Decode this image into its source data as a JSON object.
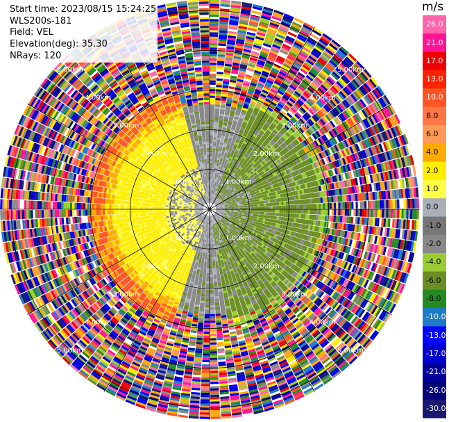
{
  "header": {
    "start_time": "Start time: 2023/08/15 15:24:25",
    "instrument": "WLS200s-181",
    "field": "Field: VEL",
    "elevation": "Elevation(deg): 35.30",
    "nrays": "NRays: 120"
  },
  "colorbar": {
    "title": "m/s",
    "ticks": [
      "26.0",
      "21.0",
      "17.0",
      "13.0",
      "10.0",
      "8.0",
      "6.0",
      "4.0",
      "2.0",
      "1.0",
      "0.0",
      "-1.0",
      "-2.0",
      "-4.0",
      "-6.0",
      "-8.0",
      "-10.0",
      "-13.0",
      "-17.0",
      "-21.0",
      "-26.0",
      "-30.0"
    ],
    "colors": [
      "#ff66aa",
      "#ff1493",
      "#ee0000",
      "#ff2200",
      "#ff5522",
      "#ff7744",
      "#ff9955",
      "#ffaa00",
      "#ffee00",
      "#ffff44",
      "#aab0b8",
      "#777777",
      "#888888",
      "#99cc33",
      "#6b8e23",
      "#228b22",
      "#1e7bc8",
      "#0000ff",
      "#0000cd",
      "#000099",
      "#000077",
      "#191970"
    ]
  },
  "chart_data": {
    "type": "polar-ppi",
    "field": "VEL",
    "units": "m/s",
    "nrays": 120,
    "range_ring_labels": [
      "1.00km",
      "2.00km",
      "3.00km",
      "4.00km",
      "5.00km"
    ],
    "range_rings_km": [
      1,
      2,
      3,
      4,
      5
    ],
    "near_field_pattern": {
      "inner_yellow_west_km": [
        0.3,
        2.7
      ],
      "inner_grey_core_km": [
        0,
        1.1
      ],
      "green_east_sector_km": [
        0.4,
        2.8
      ],
      "noisy_beyond_km": 3.0
    },
    "colormap_boundaries": [
      -30,
      -26,
      -21,
      -17,
      -13,
      -10,
      -8,
      -6,
      -4,
      -2,
      -1,
      0,
      1,
      2,
      4,
      6,
      8,
      10,
      13,
      17,
      21,
      26
    ]
  }
}
